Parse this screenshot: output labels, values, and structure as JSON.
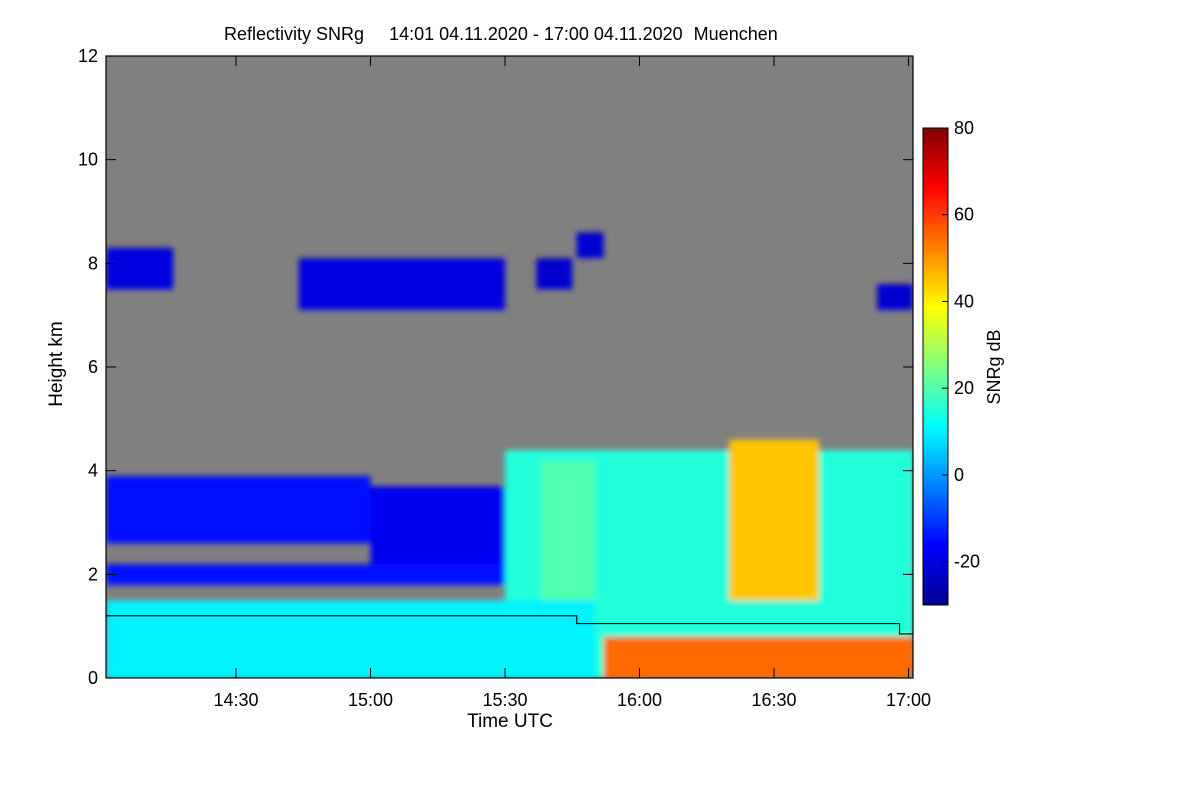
{
  "chart_data": {
    "type": "heatmap",
    "title": "Reflectivity SNRg",
    "time_range": "14:01 04.11.2020 - 17:00 04.11.2020",
    "location": "Muenchen",
    "xlabel": "Time UTC",
    "ylabel": "Height km",
    "x_range": [
      "14:01",
      "17:01"
    ],
    "x_ticks": [
      "14:30",
      "15:00",
      "15:30",
      "16:00",
      "16:30",
      "17:00"
    ],
    "y_range": [
      0,
      12
    ],
    "y_ticks": [
      "0",
      "2",
      "4",
      "6",
      "8",
      "10",
      "12"
    ],
    "colorbar": {
      "label": "SNRg dB",
      "range": [
        -30,
        80
      ],
      "ticks": [
        "-20",
        "0",
        "20",
        "40",
        "60",
        "80"
      ],
      "colormap": "jet",
      "colors": [
        "#00008f",
        "#0000ff",
        "#0080ff",
        "#00ffff",
        "#80ff80",
        "#ffff00",
        "#ff8000",
        "#ff0000",
        "#800000"
      ]
    },
    "no_signal_color": "#808080",
    "regions": [
      {
        "kind": "cloud_layer",
        "t_start": "14:01",
        "t_end": "14:16",
        "h_bottom": 7.5,
        "h_top": 8.3,
        "snr": -20
      },
      {
        "kind": "cloud_layer",
        "t_start": "14:44",
        "t_end": "15:30",
        "h_bottom": 7.1,
        "h_top": 8.1,
        "snr": -20
      },
      {
        "kind": "cloud_layer",
        "t_start": "15:37",
        "t_end": "15:45",
        "h_bottom": 7.5,
        "h_top": 8.1,
        "snr": -22
      },
      {
        "kind": "cloud_layer",
        "t_start": "15:46",
        "t_end": "15:52",
        "h_bottom": 8.1,
        "h_top": 8.6,
        "snr": -22
      },
      {
        "kind": "cloud_layer",
        "t_start": "16:53",
        "t_end": "17:01",
        "h_bottom": 7.1,
        "h_top": 7.6,
        "snr": -22
      },
      {
        "kind": "cloud_layer",
        "t_start": "14:01",
        "t_end": "15:00",
        "h_bottom": 2.6,
        "h_top": 3.9,
        "snr": -15
      },
      {
        "kind": "cloud_layer",
        "t_start": "15:00",
        "t_end": "15:30",
        "h_bottom": 2.1,
        "h_top": 3.7,
        "snr": -18
      },
      {
        "kind": "cloud_layer",
        "t_start": "14:01",
        "t_end": "15:30",
        "h_bottom": 1.8,
        "h_top": 2.2,
        "snr": -15
      },
      {
        "kind": "precip",
        "t_start": "15:30",
        "t_end": "17:01",
        "h_bottom": 0.0,
        "h_top": 4.4,
        "snr": 15
      },
      {
        "kind": "precip",
        "t_start": "15:38",
        "t_end": "15:50",
        "h_bottom": 0.0,
        "h_top": 4.2,
        "snr": 20
      },
      {
        "kind": "precip",
        "t_start": "16:20",
        "t_end": "16:40",
        "h_bottom": 1.5,
        "h_top": 4.6,
        "snr": 45
      },
      {
        "kind": "boundary_layer",
        "t_start": "14:01",
        "t_end": "15:50",
        "h_bottom": 0.0,
        "h_top": 1.5,
        "snr": 10
      },
      {
        "kind": "surface_rain",
        "t_start": "15:52",
        "t_end": "17:01",
        "h_bottom": 0.0,
        "h_top": 0.8,
        "snr": 55
      }
    ],
    "line_series": {
      "values": [
        {
          "t": "14:01",
          "h": 1.2
        },
        {
          "t": "15:46",
          "h": 1.2
        },
        {
          "t": "15:46",
          "h": 1.05
        },
        {
          "t": "16:58",
          "h": 1.05
        },
        {
          "t": "16:58",
          "h": 0.85
        },
        {
          "t": "17:01",
          "h": 0.85
        }
      ],
      "color": "#000000"
    }
  }
}
